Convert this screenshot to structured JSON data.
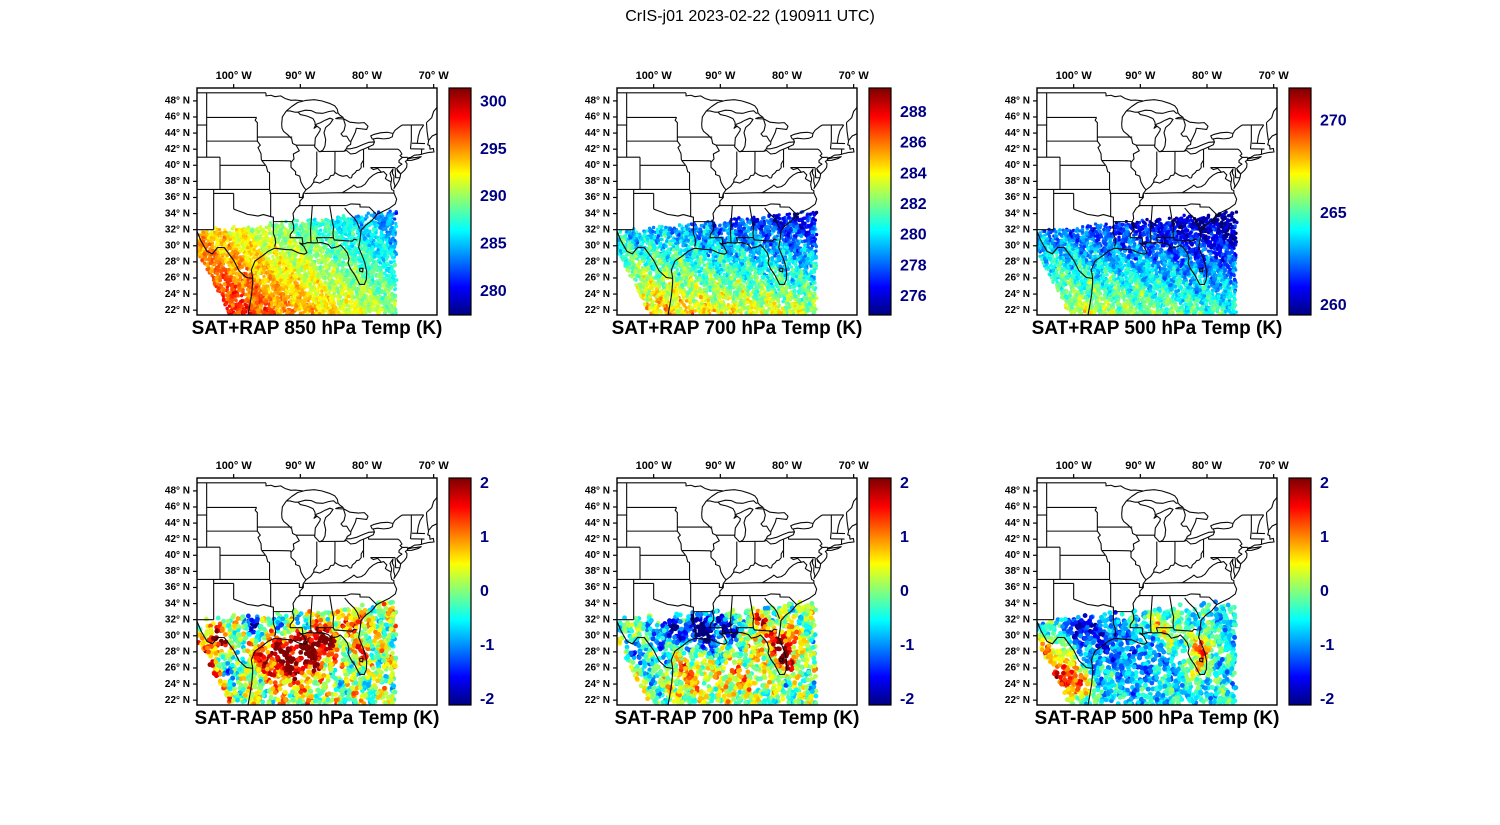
{
  "figure": {
    "title": "CrIS-j01 2023-02-22 (190911 UTC)",
    "background": "#ffffff",
    "layout": {
      "rows": 2,
      "cols": 3
    }
  },
  "axes": {
    "x_tick_labels": [
      "100° W",
      "90° W",
      "80° W",
      "70° W"
    ],
    "x_tick_lons": [
      -100,
      -90,
      -80,
      -70
    ],
    "y_tick_labels": [
      "48° N",
      "46° N",
      "44° N",
      "42° N",
      "40° N",
      "38° N",
      "36° N",
      "34° N",
      "32° N",
      "30° N",
      "28° N",
      "26° N",
      "24° N",
      "22° N"
    ],
    "y_tick_lats": [
      48,
      46,
      44,
      42,
      40,
      38,
      36,
      34,
      32,
      30,
      28,
      26,
      24,
      22
    ],
    "lon_range": [
      -105.5,
      -69.5
    ],
    "lat_range": [
      21.4,
      49.6
    ],
    "grid": false,
    "map": "US state boundaries, eastern/central United States"
  },
  "chart_data": [
    {
      "type": "scatter",
      "subtype": "geographic-swath",
      "title": "SAT+RAP 850 hPa Temp (K)",
      "quantity": "SAT+RAP temperature",
      "level_hPa": 850,
      "units": "K",
      "colormap": "jet",
      "color_range": [
        277.5,
        301.5
      ],
      "color_ticks": [
        280,
        285,
        290,
        295,
        300
      ],
      "swath_extent": {
        "lon": [
          -105.5,
          -75.7
        ],
        "lat": [
          21.5,
          34.1
        ]
      },
      "summary": "Dense CrIS swath over the Gulf Coast (about 22-34 N): 295-300 K (red/orange) over south Texas and northern Mexico, 283-290 K (cyan/green) toward the southeast US and Atlantic.",
      "render": {
        "kind": "temp",
        "seed": 11,
        "tries": 5600,
        "radius": 1.7,
        "jitter": 0.9,
        "field": {
          "base": 300,
          "du": -10,
          "dv": -7,
          "a1": 1.1,
          "a2": 0.8,
          "rnd": 2.0
        }
      }
    },
    {
      "type": "scatter",
      "subtype": "geographic-swath",
      "title": "SAT+RAP 700 hPa Temp (K)",
      "quantity": "SAT+RAP temperature",
      "level_hPa": 700,
      "units": "K",
      "colormap": "jet",
      "color_range": [
        274.8,
        289.6
      ],
      "color_ticks": [
        276,
        278,
        280,
        282,
        284,
        286,
        288
      ],
      "swath_extent": {
        "lon": [
          -105.5,
          -75.7
        ],
        "lat": [
          21.5,
          34.1
        ]
      },
      "summary": "282-287 K (yellow/orange) across the central and southern Gulf, 276-280 K (blue) along the northern swath edge; isolated warm spots near the Florida Atlantic coast.",
      "render": {
        "kind": "temp",
        "seed": 22,
        "tries": 5600,
        "radius": 1.7,
        "jitter": 0.9,
        "field": {
          "base": 285.6,
          "du": -2.5,
          "dv": -7,
          "a1": 1.0,
          "a2": 0.8,
          "rnd": 1.6
        }
      }
    },
    {
      "type": "scatter",
      "subtype": "geographic-swath",
      "title": "SAT+RAP 500 hPa Temp (K)",
      "quantity": "SAT+RAP temperature",
      "level_hPa": 500,
      "units": "K",
      "colormap": "jet",
      "color_range": [
        259.5,
        271.8
      ],
      "color_ticks": [
        260,
        265,
        270
      ],
      "swath_extent": {
        "lon": [
          -105.5,
          -75.7
        ],
        "lat": [
          21.5,
          34.1
        ]
      },
      "summary": "264-268 K (green/yellow) in the southwest corner of the swath, 261-265 K (blue/cyan) over most of the Gulf and southeast US.",
      "render": {
        "kind": "temp",
        "seed": 33,
        "tries": 5600,
        "radius": 1.7,
        "jitter": 0.9,
        "field": {
          "base": 267.2,
          "du": -2.5,
          "dv": -5.5,
          "a1": 0.8,
          "a2": 0.6,
          "rnd": 1.2
        }
      }
    },
    {
      "type": "scatter",
      "subtype": "geographic-swath",
      "title": "SAT-RAP 850 hPa Temp (K)",
      "quantity": "SAT minus RAP temperature difference",
      "level_hPa": 850,
      "units": "K",
      "colormap": "jet",
      "color_range": [
        -2.1,
        2.1
      ],
      "color_ticks": [
        2,
        1,
        0,
        -1,
        -2
      ],
      "swath_extent": {
        "lon": [
          -105.5,
          -75.7
        ],
        "lat": [
          21.5,
          34.1
        ]
      },
      "summary": "Differences mostly within +/-1 K; positive (red/orange) patch over the central Gulf near 86-93 W, scattered +/-2 K outliers along the northern swath edge and west Texas.",
      "render": {
        "kind": "diff",
        "seed": 44,
        "tries": 2100,
        "radius": 2.4,
        "jitter": 1.2,
        "field": {
          "b0": 0.15,
          "s1": 0.5,
          "s2": 0.45,
          "rnd": 0.9
        },
        "blobs": [
          [
            -91.5,
            27.3,
            2.4,
            2.0
          ],
          [
            -87.8,
            28.6,
            1.8,
            1.7
          ],
          [
            -85.9,
            30.0,
            1.0,
            1.3
          ],
          [
            -97.0,
            31.2,
            1.1,
            -1.7
          ],
          [
            -92.6,
            31.3,
            1.0,
            -1.4
          ],
          [
            -102.6,
            29.3,
            1.3,
            1.8
          ],
          [
            -104.0,
            24.8,
            1.4,
            1.6
          ],
          [
            -100.3,
            26.3,
            1.3,
            -1.1
          ],
          [
            -82.0,
            31.8,
            1.0,
            1.4
          ],
          [
            -80.8,
            28.2,
            0.9,
            1.2
          ],
          [
            -95.5,
            27.5,
            1.6,
            0.9
          ],
          [
            -89.5,
            31.5,
            0.8,
            -1.3
          ]
        ]
      }
    },
    {
      "type": "scatter",
      "subtype": "geographic-swath",
      "title": "SAT-RAP 700 hPa Temp (K)",
      "quantity": "SAT minus RAP temperature difference",
      "level_hPa": 700,
      "units": "K",
      "colormap": "jet",
      "color_range": [
        -2.1,
        2.1
      ],
      "color_ticks": [
        2,
        1,
        0,
        -1,
        -2
      ],
      "swath_extent": {
        "lon": [
          -105.5,
          -75.7
        ],
        "lat": [
          21.5,
          34.1
        ]
      },
      "summary": "Mostly -1 to +1 K; strong positive (red) cluster along Florida's Atlantic coast, negative (dark blue) cluster near the Texas-Louisiana coast around 30 N.",
      "render": {
        "kind": "diff",
        "seed": 55,
        "tries": 2100,
        "radius": 2.4,
        "jitter": 1.2,
        "field": {
          "b0": -0.05,
          "s1": 0.45,
          "s2": 0.4,
          "rnd": 0.9
        },
        "blobs": [
          [
            -80.6,
            29.0,
            1.4,
            2.1
          ],
          [
            -80.2,
            26.6,
            1.0,
            1.6
          ],
          [
            -92.6,
            30.6,
            2.0,
            -2.0
          ],
          [
            -97.6,
            30.9,
            1.4,
            -1.6
          ],
          [
            -88.2,
            30.9,
            1.2,
            -1.4
          ],
          [
            -94.5,
            25.6,
            2.2,
            0.9
          ],
          [
            -99.5,
            27.0,
            1.5,
            -0.7
          ],
          [
            -84.3,
            31.9,
            0.9,
            1.5
          ],
          [
            -87.5,
            24.8,
            1.8,
            0.8
          ],
          [
            -103.0,
            28.0,
            1.2,
            -1.0
          ],
          [
            -84.0,
            29.0,
            1.3,
            0.7
          ]
        ]
      }
    },
    {
      "type": "scatter",
      "subtype": "geographic-swath",
      "title": "SAT-RAP 500 hPa Temp (K)",
      "quantity": "SAT minus RAP temperature difference",
      "level_hPa": 500,
      "units": "K",
      "colormap": "jet",
      "color_range": [
        -2.1,
        2.1
      ],
      "color_ticks": [
        2,
        1,
        0,
        -1,
        -2
      ],
      "swath_extent": {
        "lon": [
          -105.5,
          -75.7
        ],
        "lat": [
          21.5,
          34.1
        ]
      },
      "summary": "Mostly -1 to 0 K (cyan/blue); positive (red) clusters in the far southwest of the swath and near the Florida coast.",
      "render": {
        "kind": "diff",
        "seed": 66,
        "tries": 2100,
        "radius": 2.4,
        "jitter": 1.2,
        "field": {
          "b0": -0.55,
          "s1": 0.3,
          "s2": 0.3,
          "rnd": 0.7
        },
        "blobs": [
          [
            -101.6,
            25.4,
            1.6,
            2.3
          ],
          [
            -104.2,
            28.6,
            1.1,
            1.6
          ],
          [
            -99.0,
            23.6,
            1.2,
            1.5
          ],
          [
            -80.9,
            28.6,
            1.2,
            1.9
          ],
          [
            -81.6,
            25.6,
            0.9,
            1.5
          ],
          [
            -96.0,
            29.6,
            2.2,
            -0.8
          ],
          [
            -90.0,
            27.0,
            2.6,
            -0.5
          ],
          [
            -85.6,
            30.6,
            1.4,
            1.0
          ],
          [
            -99.2,
            31.4,
            1.1,
            -1.2
          ],
          [
            -88.0,
            31.6,
            1.0,
            0.8
          ]
        ]
      }
    }
  ]
}
